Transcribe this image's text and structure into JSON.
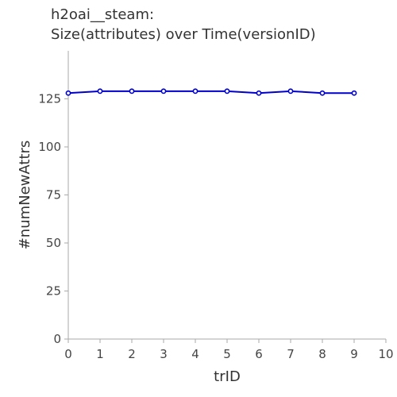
{
  "chart_data": {
    "type": "line",
    "title": [
      "h2oai__steam:",
      "Size(attributes) over Time(versionID)"
    ],
    "xlabel": "trID",
    "ylabel": "#numNewAttrs",
    "xlim": [
      0,
      10
    ],
    "ylim": [
      0,
      150
    ],
    "x_ticks": [
      0,
      1,
      2,
      3,
      4,
      5,
      6,
      7,
      8,
      9,
      10
    ],
    "y_ticks": [
      0,
      25,
      50,
      75,
      100,
      125
    ],
    "grid": false,
    "colors": {
      "series": "#0000cc",
      "axis": "#aaaaaa"
    },
    "series": [
      {
        "x": [
          0,
          1,
          2,
          3,
          4,
          5,
          6,
          7,
          8,
          9
        ],
        "values": [
          128,
          129,
          129,
          129,
          129,
          129,
          128,
          129,
          128,
          128
        ]
      }
    ]
  }
}
